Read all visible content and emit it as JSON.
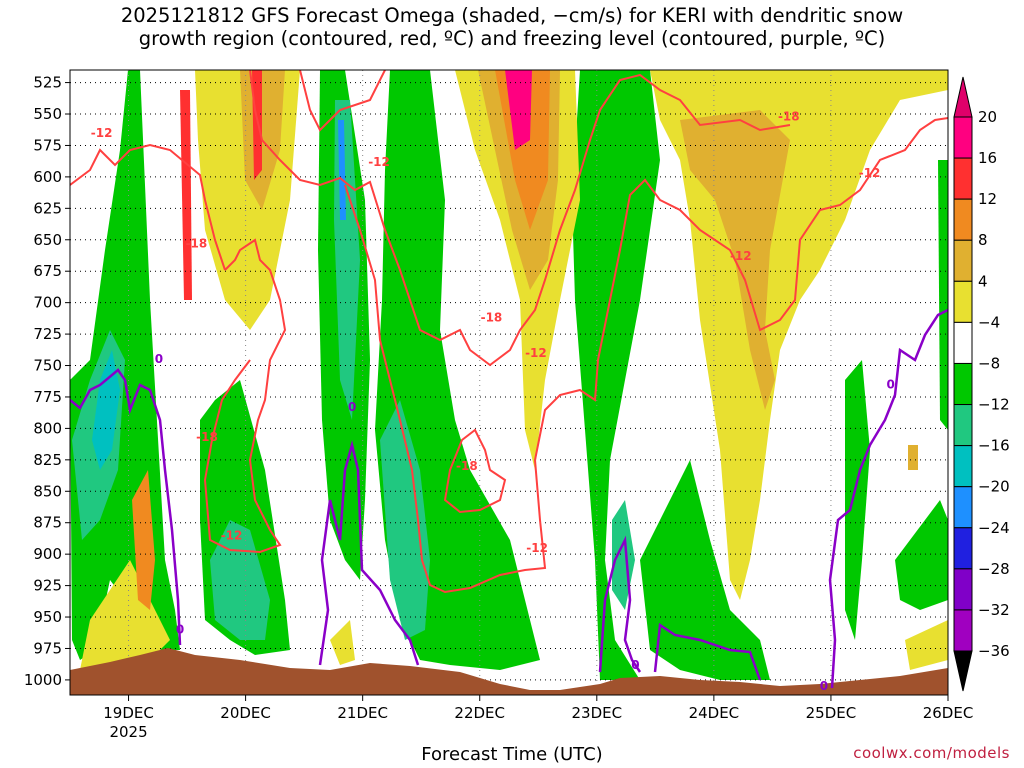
{
  "title_line1": "2025121812 GFS Forecast Omega (shaded, −cm/s) for KERI with dendritic snow",
  "title_line2": "growth region (contoured, red, ºC) and freezing level (contoured, purple, ºC)",
  "xlabel": "Forecast Time (UTC)",
  "credit": "coolwx.com/models",
  "chart_data": {
    "type": "heatmap",
    "title": "2025121812 GFS Forecast Omega (shaded, −cm/s) for KERI with dendritic snow growth region (contoured, red, ºC) and freezing level (contoured, purple, ºC)",
    "xlabel": "Forecast Time (UTC)",
    "y_levels": [
      "525",
      "550",
      "575",
      "600",
      "625",
      "650",
      "675",
      "700",
      "725",
      "750",
      "775",
      "800",
      "825",
      "850",
      "875",
      "900",
      "925",
      "950",
      "975",
      "1000"
    ],
    "y_axis_direction": "pressure decreasing upward",
    "x_ticks": [
      {
        "label": "19DEC",
        "sub": "2025",
        "day": 19
      },
      {
        "label": "20DEC",
        "sub": "",
        "day": 20
      },
      {
        "label": "21DEC",
        "sub": "",
        "day": 21
      },
      {
        "label": "22DEC",
        "sub": "",
        "day": 22
      },
      {
        "label": "23DEC",
        "sub": "",
        "day": 23
      },
      {
        "label": "24DEC",
        "sub": "",
        "day": 24
      },
      {
        "label": "25DEC",
        "sub": "",
        "day": 25
      },
      {
        "label": "26DEC",
        "sub": "",
        "day": 26
      }
    ],
    "x_range_days": [
      18.5,
      26.0
    ],
    "y_range_hpa": [
      515,
      1012
    ],
    "grid": true,
    "colorbar": {
      "placement": "right",
      "levels": [
        {
          "label": "20",
          "color": "#ff0080"
        },
        {
          "label": "16",
          "color": "#ff3030"
        },
        {
          "label": "12",
          "color": "#f08a20"
        },
        {
          "label": "8",
          "color": "#e0b030"
        },
        {
          "label": "4",
          "color": "#e8e030"
        },
        {
          "label": "−4",
          "color": "#ffffff"
        },
        {
          "label": "−8",
          "color": "#00c800"
        },
        {
          "label": "−12",
          "color": "#20c880"
        },
        {
          "label": "−16",
          "color": "#00c0c0"
        },
        {
          "label": "−20",
          "color": "#1e90ff"
        },
        {
          "label": "−24",
          "color": "#2020e0"
        },
        {
          "label": "−28",
          "color": "#8000c8"
        },
        {
          "label": "−32",
          "color": "#a000c0"
        },
        {
          "label": "−36",
          "color": "#a0a0a0"
        }
      ],
      "top_triangle_color": "#e0006a",
      "bottom_triangle_color": "#000000"
    },
    "terrain_color": "#a0522d",
    "freezing_contour_color": "#8a00c8",
    "dgz_contour_color": "#ff4040",
    "contour_labels": [
      {
        "text": "-12",
        "color": "#ff4040",
        "day": 18.77,
        "p": 565
      },
      {
        "text": "-18",
        "color": "#ff4040",
        "day": 19.58,
        "p": 653
      },
      {
        "text": "-18",
        "color": "#ff4040",
        "day": 19.67,
        "p": 807
      },
      {
        "text": "-12",
        "color": "#ff4040",
        "day": 19.88,
        "p": 885
      },
      {
        "text": "-12",
        "color": "#ff4040",
        "day": 21.14,
        "p": 588
      },
      {
        "text": "-18",
        "color": "#ff4040",
        "day": 22.1,
        "p": 712
      },
      {
        "text": "-18",
        "color": "#ff4040",
        "day": 21.89,
        "p": 830
      },
      {
        "text": "-12",
        "color": "#ff4040",
        "day": 22.48,
        "p": 740
      },
      {
        "text": "-12",
        "color": "#ff4040",
        "day": 22.49,
        "p": 895
      },
      {
        "text": "-18",
        "color": "#ff4040",
        "day": 24.64,
        "p": 552
      },
      {
        "text": "-12",
        "color": "#ff4040",
        "day": 24.23,
        "p": 663
      },
      {
        "text": "-12",
        "color": "#ff4040",
        "day": 25.33,
        "p": 597
      },
      {
        "text": "0",
        "color": "#8a00c8",
        "day": 19.26,
        "p": 745
      },
      {
        "text": "0",
        "color": "#8a00c8",
        "day": 19.44,
        "p": 960
      },
      {
        "text": "0",
        "color": "#8a00c8",
        "day": 20.91,
        "p": 783
      },
      {
        "text": "0",
        "color": "#8a00c8",
        "day": 23.33,
        "p": 988
      },
      {
        "text": "0",
        "color": "#8a00c8",
        "day": 24.94,
        "p": 1005
      },
      {
        "text": "0",
        "color": "#8a00c8",
        "day": 25.51,
        "p": 765
      }
    ]
  }
}
